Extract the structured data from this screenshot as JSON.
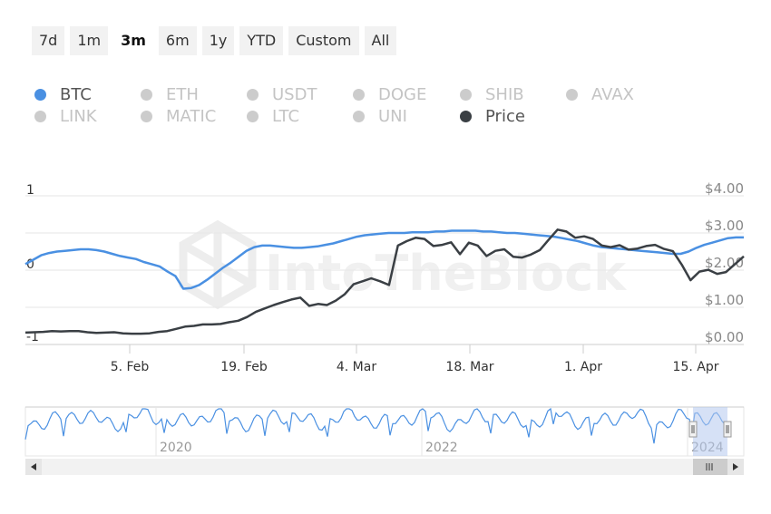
{
  "range_selector": {
    "buttons": [
      "7d",
      "1m",
      "3m",
      "6m",
      "1y",
      "YTD",
      "Custom",
      "All"
    ],
    "active": "3m"
  },
  "legend": [
    {
      "name": "BTC",
      "active": true,
      "color": "#4a90e2"
    },
    {
      "name": "ETH",
      "active": false
    },
    {
      "name": "USDT",
      "active": false
    },
    {
      "name": "DOGE",
      "active": false
    },
    {
      "name": "SHIB",
      "active": false
    },
    {
      "name": "AVAX",
      "active": false
    },
    {
      "name": "LINK",
      "active": false
    },
    {
      "name": "MATIC",
      "active": false
    },
    {
      "name": "LTC",
      "active": false
    },
    {
      "name": "UNI",
      "active": false
    },
    {
      "name": "Price",
      "active": true,
      "color": "#3a3f44"
    }
  ],
  "watermark": "IntoTheBlock",
  "chart_data": {
    "type": "line",
    "x_ticks": [
      "5. Feb",
      "19. Feb",
      "4. Mar",
      "18. Mar",
      "1. Apr",
      "15. Apr"
    ],
    "y_left": {
      "ticks": [
        "1",
        "0",
        "-1"
      ],
      "range": [
        -1,
        1
      ]
    },
    "y_right": {
      "ticks": [
        "$4.00",
        "$3.00",
        "$2.00",
        "$1.00",
        "$0.00"
      ],
      "range": [
        0,
        4
      ]
    },
    "grid": true,
    "series": [
      {
        "name": "BTC",
        "axis": "left",
        "color": "#4a90e2",
        "values": [
          0.08,
          0.14,
          0.2,
          0.23,
          0.25,
          0.26,
          0.27,
          0.28,
          0.28,
          0.27,
          0.25,
          0.22,
          0.19,
          0.17,
          0.15,
          0.11,
          0.08,
          0.05,
          -0.02,
          -0.08,
          -0.25,
          -0.24,
          -0.2,
          -0.13,
          -0.05,
          0.03,
          0.1,
          0.18,
          0.26,
          0.31,
          0.33,
          0.33,
          0.32,
          0.31,
          0.3,
          0.3,
          0.31,
          0.32,
          0.34,
          0.36,
          0.39,
          0.42,
          0.45,
          0.47,
          0.48,
          0.49,
          0.5,
          0.5,
          0.5,
          0.51,
          0.51,
          0.51,
          0.52,
          0.52,
          0.53,
          0.53,
          0.53,
          0.53,
          0.52,
          0.52,
          0.51,
          0.5,
          0.5,
          0.49,
          0.48,
          0.47,
          0.46,
          0.45,
          0.43,
          0.41,
          0.39,
          0.36,
          0.33,
          0.31,
          0.3,
          0.29,
          0.28,
          0.27,
          0.26,
          0.25,
          0.24,
          0.23,
          0.22,
          0.22,
          0.25,
          0.3,
          0.34,
          0.37,
          0.4,
          0.43,
          0.44,
          0.44
        ]
      },
      {
        "name": "Price",
        "axis": "right",
        "color": "#3a3f44",
        "values": [
          0.32,
          0.33,
          0.34,
          0.36,
          0.35,
          0.36,
          0.36,
          0.33,
          0.31,
          0.32,
          0.33,
          0.3,
          0.29,
          0.29,
          0.3,
          0.34,
          0.36,
          0.42,
          0.48,
          0.5,
          0.54,
          0.54,
          0.55,
          0.6,
          0.64,
          0.74,
          0.88,
          0.97,
          1.06,
          1.14,
          1.21,
          1.26,
          1.04,
          1.09,
          1.06,
          1.18,
          1.35,
          1.62,
          1.7,
          1.78,
          1.7,
          1.6,
          2.66,
          2.78,
          2.87,
          2.84,
          2.65,
          2.68,
          2.75,
          2.43,
          2.74,
          2.66,
          2.38,
          2.52,
          2.56,
          2.36,
          2.34,
          2.42,
          2.54,
          2.82,
          3.09,
          3.04,
          2.87,
          2.91,
          2.84,
          2.66,
          2.62,
          2.67,
          2.55,
          2.58,
          2.65,
          2.68,
          2.57,
          2.51,
          2.15,
          1.73,
          1.96,
          2.01,
          1.9,
          1.95,
          2.16,
          2.37
        ]
      }
    ]
  },
  "navigator": {
    "year_labels": [
      "2020",
      "2022",
      "2024"
    ]
  }
}
